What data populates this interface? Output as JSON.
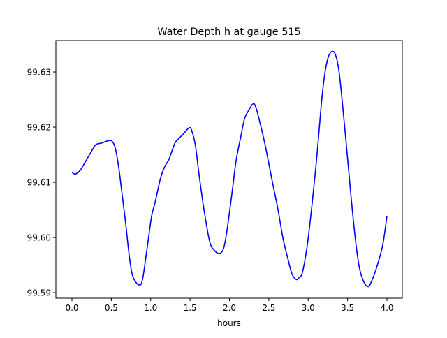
{
  "chart_data": {
    "type": "line",
    "title": "Water Depth h at gauge 515",
    "xlabel": "hours",
    "ylabel": "",
    "xlim": [
      -0.204,
      4.195
    ],
    "ylim": [
      99.589,
      99.6357
    ],
    "xticks": [
      0.0,
      0.5,
      1.0,
      1.5,
      2.0,
      2.5,
      3.0,
      3.5,
      4.0
    ],
    "xtick_labels": [
      "0.0",
      "0.5",
      "1.0",
      "1.5",
      "2.0",
      "2.5",
      "3.0",
      "3.5",
      "4.0"
    ],
    "yticks": [
      99.59,
      99.6,
      99.61,
      99.62,
      99.63
    ],
    "ytick_labels": [
      "99.59",
      "99.60",
      "99.61",
      "99.62",
      "99.63"
    ],
    "grid": false,
    "series": [
      {
        "name": "h",
        "color": "#0000ff",
        "x": [
          0,
          0.044,
          0.106,
          0.169,
          0.239,
          0.302,
          0.373,
          0.452,
          0.506,
          0.55,
          0.594,
          0.639,
          0.683,
          0.727,
          0.772,
          0.851,
          0.896,
          0.949,
          1.011,
          1.055,
          1.126,
          1.18,
          1.233,
          1.304,
          1.348,
          1.41,
          1.49,
          1.525,
          1.57,
          1.614,
          1.676,
          1.747,
          1.8,
          1.871,
          1.925,
          1.969,
          2.04,
          2.084,
          2.146,
          2.191,
          2.235,
          2.297,
          2.333,
          2.386,
          2.457,
          2.545,
          2.616,
          2.678,
          2.741,
          2.794,
          2.847,
          2.882,
          2.927,
          2.989,
          3.051,
          3.113,
          3.166,
          3.211,
          3.255,
          3.299,
          3.344,
          3.388,
          3.432,
          3.486,
          3.539,
          3.592,
          3.645,
          3.698,
          3.761,
          3.814,
          3.876,
          3.947,
          4.0
        ],
        "y": [
          99.6118,
          99.6115,
          99.6122,
          99.6137,
          99.6154,
          99.6168,
          99.6171,
          99.6175,
          99.6175,
          99.6162,
          99.6127,
          99.6076,
          99.6025,
          99.5968,
          99.593,
          99.5914,
          99.5924,
          99.5975,
          99.6038,
          99.6063,
          99.6108,
          99.6129,
          99.6142,
          99.617,
          99.6178,
          99.6187,
          99.6199,
          99.6192,
          99.6165,
          99.6114,
          99.6051,
          99.5994,
          99.5978,
          99.5971,
          99.598,
          99.6013,
          99.6089,
          99.6139,
          99.6184,
          99.6215,
          99.6228,
          99.6242,
          99.6237,
          99.6209,
          99.6165,
          99.6101,
          99.6051,
          99.6,
          99.5962,
          99.5934,
          99.5924,
          99.5927,
          99.5937,
          99.5987,
          99.6063,
          99.6152,
          99.6241,
          99.6297,
          99.6327,
          99.6337,
          99.6332,
          99.6304,
          99.6247,
          99.6165,
          99.6082,
          99.6006,
          99.5949,
          99.5922,
          99.5911,
          99.5924,
          99.5949,
          99.5987,
          99.6039
        ]
      }
    ]
  }
}
